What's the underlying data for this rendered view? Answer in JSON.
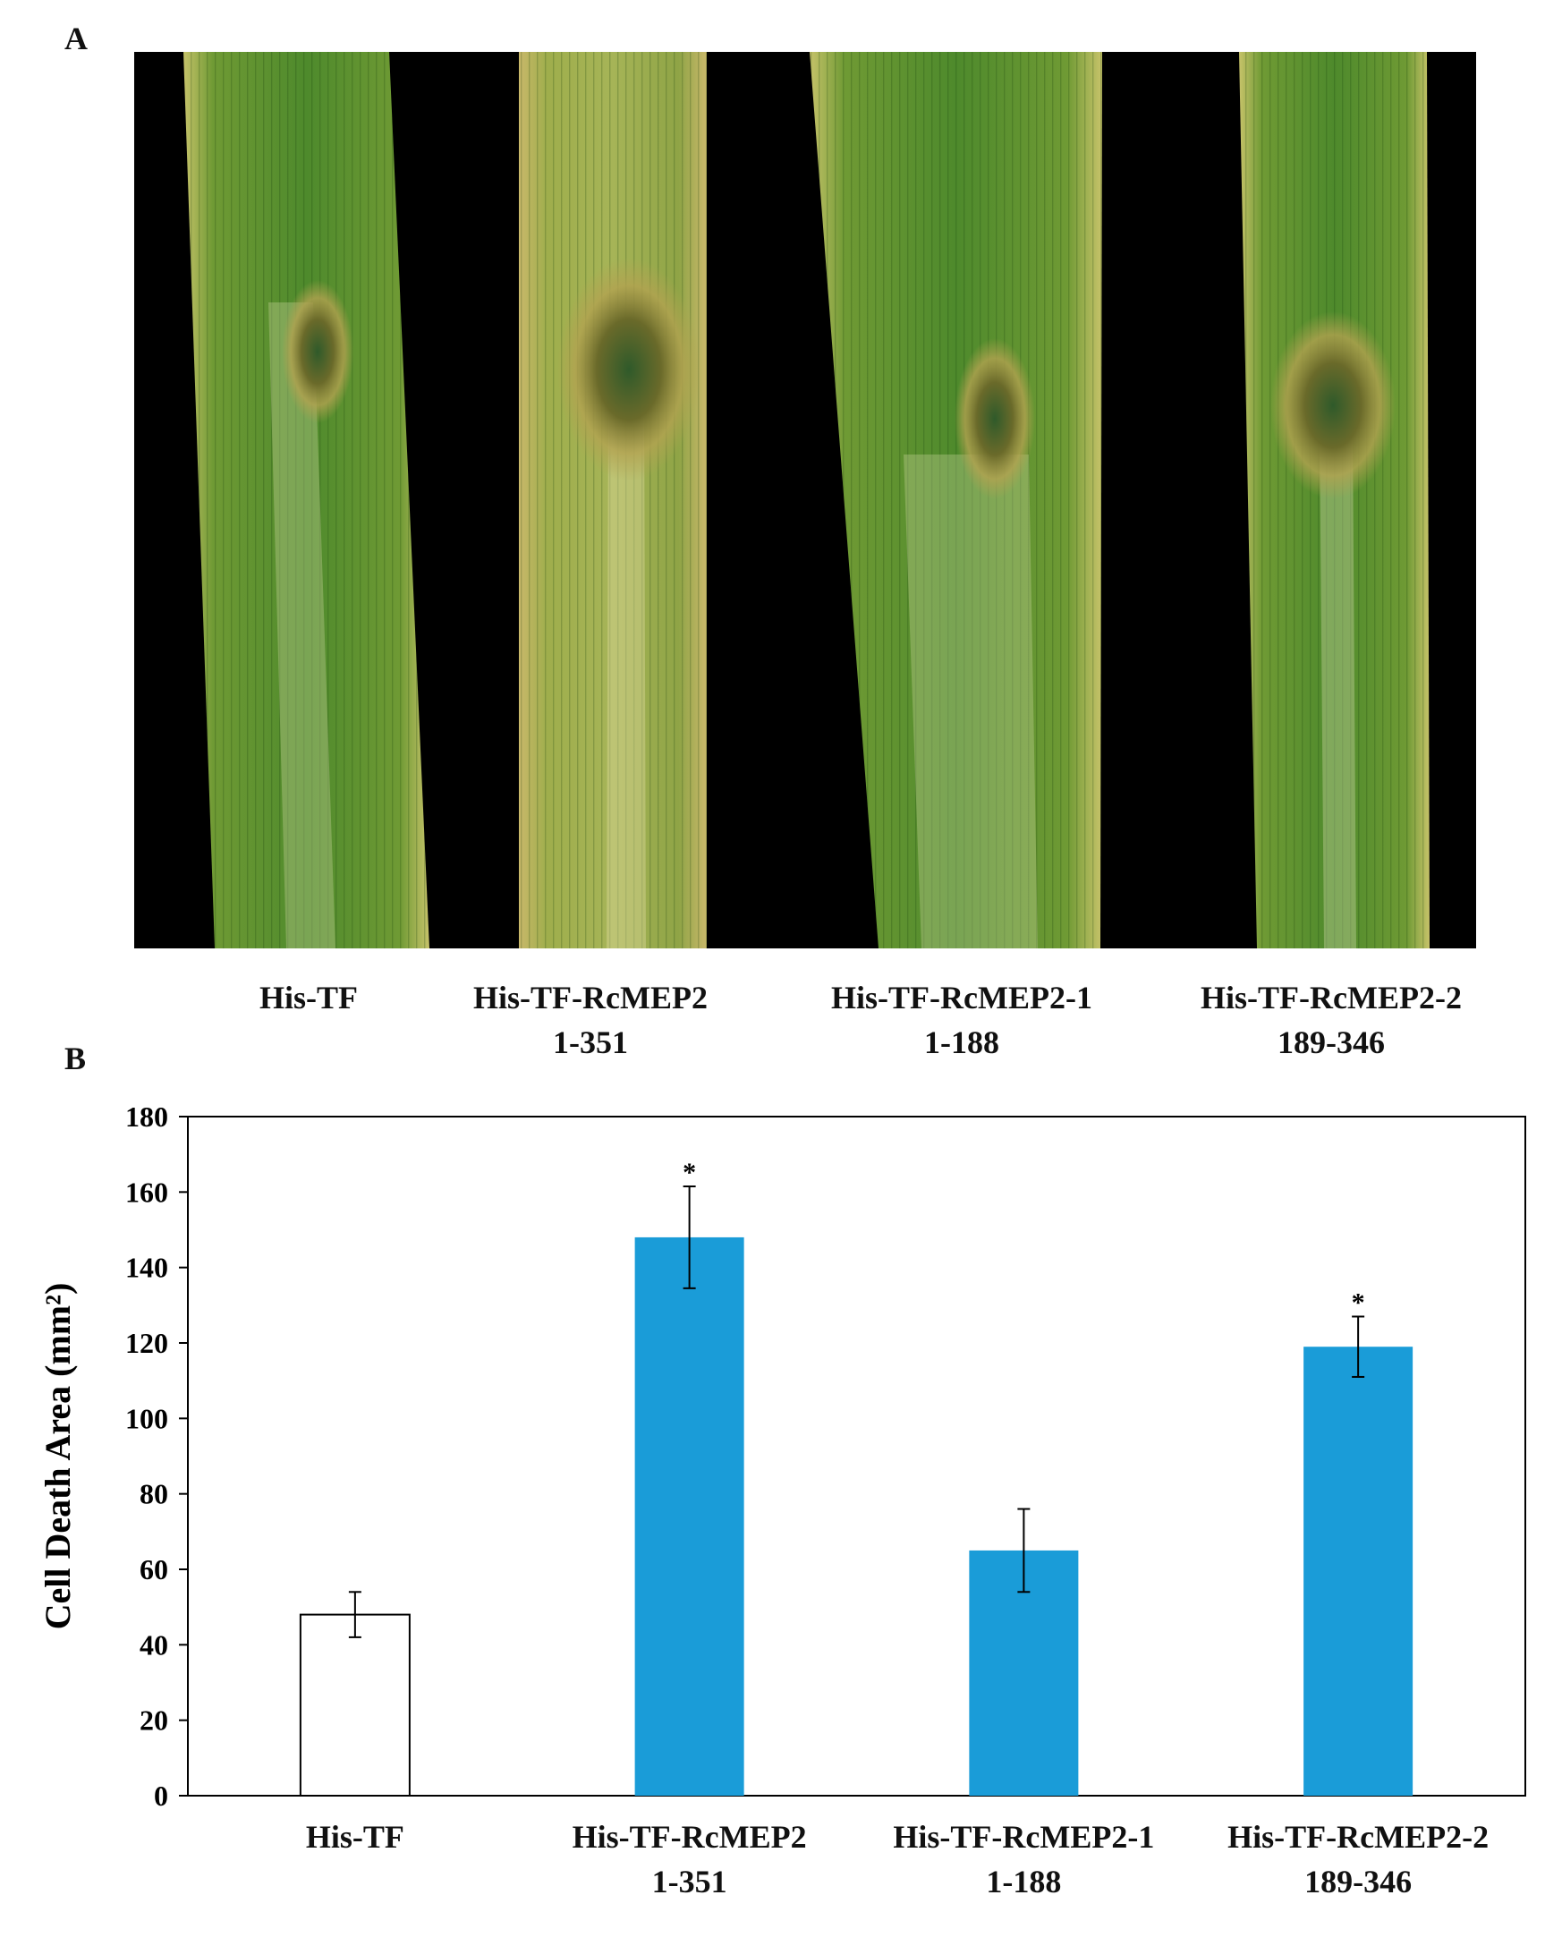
{
  "panel_a": {
    "letter": "A",
    "leaf_labels": [
      "His-TF",
      "His-TF-RcMEP2\n1-351",
      "His-TF-RcMEP2-1\n1-188",
      "His-TF-RcMEP2-2\n189-346"
    ]
  },
  "panel_b": {
    "letter": "B"
  },
  "colors": {
    "bar_control": "#ffffff",
    "bar_treatment": "#1a9cd8",
    "photo_background": "#000000",
    "leaf_green": "#5f8c2c"
  },
  "chart_data": {
    "type": "bar",
    "categories": [
      "His-TF",
      "His-TF-RcMEP2\n1-351",
      "His-TF-RcMEP2-1\n1-188",
      "His-TF-RcMEP2-2\n189-346"
    ],
    "values": [
      48,
      148,
      65,
      119
    ],
    "errors": [
      6,
      13.5,
      11,
      8
    ],
    "significance": [
      "",
      "*",
      "",
      "*"
    ],
    "xlabel": "",
    "ylabel": "Cell Death Area (mm²)",
    "ylim": [
      0,
      180
    ],
    "yticks": [
      0,
      20,
      40,
      60,
      80,
      100,
      120,
      140,
      160,
      180
    ],
    "grid": false,
    "legend": "none"
  }
}
